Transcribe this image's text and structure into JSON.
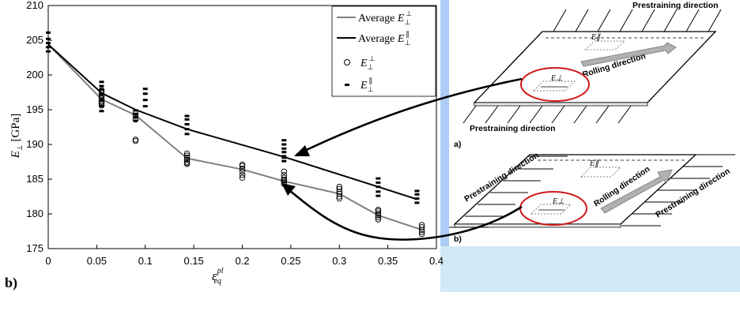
{
  "panel_label": "b)",
  "chart_data": {
    "type": "line",
    "ylabel": "E⊥ [GPa]",
    "xlabel": "ε_eq^pl",
    "xlim": [
      0,
      0.4
    ],
    "ylim": [
      175,
      210
    ],
    "x_ticks": [
      "0",
      "0.05",
      "0.1",
      "0.15",
      "0.2",
      "0.25",
      "0.3",
      "0.35",
      "0.4"
    ],
    "y_ticks": [
      "175",
      "180",
      "185",
      "190",
      "195",
      "200",
      "205",
      "210"
    ],
    "legend_position": "top-right",
    "series": [
      {
        "name": "Average E⊥⊥",
        "color": "#808080",
        "marker": "none",
        "x": [
          0,
          0.055,
          0.09,
          0.143,
          0.2,
          0.243,
          0.3,
          0.34,
          0.385
        ],
        "y": [
          204.4,
          196.5,
          194.2,
          188,
          186.4,
          184.7,
          182.9,
          179.8,
          177.7
        ]
      },
      {
        "name": "Average E⊥∥",
        "color": "#000000",
        "marker": "none",
        "x": [
          0,
          0.055,
          0.09,
          0.143,
          0.243,
          0.34,
          0.38
        ],
        "y": [
          204.4,
          197.4,
          195,
          192.2,
          188.2,
          183.9,
          182.1
        ]
      },
      {
        "name": "E⊥⊥",
        "color": "#000000",
        "marker": "circle",
        "x": [
          0.055,
          0.055,
          0.055,
          0.055,
          0.055,
          0.055,
          0.055,
          0.055,
          0.055,
          0.09,
          0.09,
          0.09,
          0.09,
          0.09,
          0.143,
          0.143,
          0.143,
          0.143,
          0.143,
          0.143,
          0.143,
          0.2,
          0.2,
          0.2,
          0.2,
          0.2,
          0.2,
          0.243,
          0.243,
          0.243,
          0.243,
          0.243,
          0.243,
          0.243,
          0.3,
          0.3,
          0.3,
          0.3,
          0.3,
          0.3,
          0.34,
          0.34,
          0.34,
          0.34,
          0.34,
          0.34,
          0.385,
          0.385,
          0.385,
          0.385,
          0.385
        ],
        "y": [
          195.6,
          195.9,
          196.1,
          196.3,
          196.6,
          196.9,
          197.1,
          197.4,
          197.8,
          190.5,
          190.7,
          193.6,
          194.1,
          194.5,
          187.2,
          187.5,
          187.8,
          188.1,
          188.4,
          188.7,
          187.3,
          185.2,
          185.6,
          186.1,
          186.5,
          186.9,
          187.1,
          184.3,
          184.6,
          184.9,
          185.2,
          185.6,
          186.1,
          184.8,
          182.2,
          182.5,
          182.9,
          183.2,
          183.6,
          183.9,
          179.2,
          179.5,
          179.8,
          180.1,
          180.4,
          180.6,
          177.1,
          177.4,
          177.7,
          178.1,
          178.4
        ]
      },
      {
        "name": "E⊥∥",
        "color": "#000000",
        "marker": "dash",
        "x": [
          0,
          0,
          0,
          0,
          0,
          0.055,
          0.055,
          0.055,
          0.055,
          0.055,
          0.055,
          0.055,
          0.09,
          0.09,
          0.09,
          0.09,
          0.1,
          0.1,
          0.1,
          0.1,
          0.143,
          0.143,
          0.143,
          0.143,
          0.143,
          0.243,
          0.243,
          0.243,
          0.243,
          0.243,
          0.243,
          0.243,
          0.34,
          0.34,
          0.34,
          0.34,
          0.34,
          0.38,
          0.38,
          0.38,
          0.38
        ],
        "y": [
          203.4,
          204,
          204.6,
          205.2,
          206.1,
          194.8,
          195.5,
          196.3,
          197.2,
          197.9,
          198.4,
          199,
          193.4,
          193.9,
          194.4,
          194.9,
          195.5,
          196.4,
          197.3,
          198,
          191.5,
          192.2,
          192.9,
          193.6,
          194.1,
          187.6,
          188.3,
          188.9,
          189.4,
          190,
          190.6,
          188.1,
          182.6,
          183.2,
          183.9,
          184.5,
          185.1,
          181.6,
          182.2,
          182.8,
          183.3
        ]
      }
    ]
  },
  "diagram": {
    "top": {
      "label": "a)",
      "direction_top": "Prestraining direction",
      "direction_bottom": "Prestraining direction",
      "rolling": "Rolling direction",
      "e_parallel": "E∥",
      "e_perp": "E⊥"
    },
    "bottom": {
      "label": "b)",
      "direction_left": "Prestraining direction",
      "direction_right": "Prestraining direction",
      "rolling": "Rolling direction",
      "e_parallel": "E∥",
      "e_perp": "E⊥"
    }
  },
  "colors": {
    "diagram_frame_blue": "#adcdf8",
    "diagram_panel_lightblue": "#d2eaf6",
    "ellipse_red": "#d01818",
    "arrow_gray": "#9a9a9a"
  }
}
